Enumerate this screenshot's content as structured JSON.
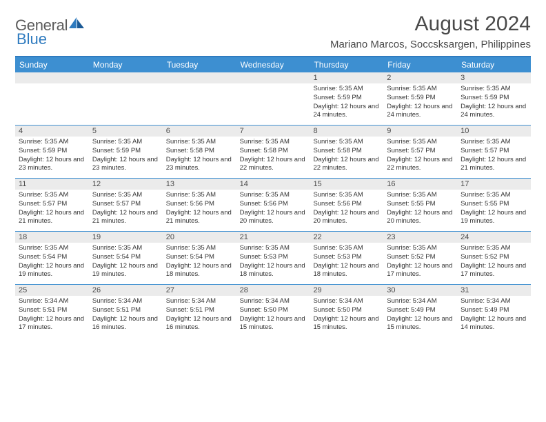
{
  "logo": {
    "text_part1": "General",
    "text_part2": "Blue",
    "icon_color": "#2f7bbf"
  },
  "header": {
    "month_title": "August 2024",
    "location": "Mariano Marcos, Soccsksargen, Philippines"
  },
  "colors": {
    "header_bar": "#3d8fd1",
    "header_border": "#2f7bbf",
    "daynum_bg": "#ebebeb",
    "text": "#333333",
    "title_text": "#4a4a4a"
  },
  "weekdays": [
    "Sunday",
    "Monday",
    "Tuesday",
    "Wednesday",
    "Thursday",
    "Friday",
    "Saturday"
  ],
  "weeks": [
    [
      null,
      null,
      null,
      null,
      {
        "n": "1",
        "sr": "Sunrise: 5:35 AM",
        "ss": "Sunset: 5:59 PM",
        "dl": "Daylight: 12 hours and 24 minutes."
      },
      {
        "n": "2",
        "sr": "Sunrise: 5:35 AM",
        "ss": "Sunset: 5:59 PM",
        "dl": "Daylight: 12 hours and 24 minutes."
      },
      {
        "n": "3",
        "sr": "Sunrise: 5:35 AM",
        "ss": "Sunset: 5:59 PM",
        "dl": "Daylight: 12 hours and 24 minutes."
      }
    ],
    [
      {
        "n": "4",
        "sr": "Sunrise: 5:35 AM",
        "ss": "Sunset: 5:59 PM",
        "dl": "Daylight: 12 hours and 23 minutes."
      },
      {
        "n": "5",
        "sr": "Sunrise: 5:35 AM",
        "ss": "Sunset: 5:59 PM",
        "dl": "Daylight: 12 hours and 23 minutes."
      },
      {
        "n": "6",
        "sr": "Sunrise: 5:35 AM",
        "ss": "Sunset: 5:58 PM",
        "dl": "Daylight: 12 hours and 23 minutes."
      },
      {
        "n": "7",
        "sr": "Sunrise: 5:35 AM",
        "ss": "Sunset: 5:58 PM",
        "dl": "Daylight: 12 hours and 22 minutes."
      },
      {
        "n": "8",
        "sr": "Sunrise: 5:35 AM",
        "ss": "Sunset: 5:58 PM",
        "dl": "Daylight: 12 hours and 22 minutes."
      },
      {
        "n": "9",
        "sr": "Sunrise: 5:35 AM",
        "ss": "Sunset: 5:57 PM",
        "dl": "Daylight: 12 hours and 22 minutes."
      },
      {
        "n": "10",
        "sr": "Sunrise: 5:35 AM",
        "ss": "Sunset: 5:57 PM",
        "dl": "Daylight: 12 hours and 21 minutes."
      }
    ],
    [
      {
        "n": "11",
        "sr": "Sunrise: 5:35 AM",
        "ss": "Sunset: 5:57 PM",
        "dl": "Daylight: 12 hours and 21 minutes."
      },
      {
        "n": "12",
        "sr": "Sunrise: 5:35 AM",
        "ss": "Sunset: 5:57 PM",
        "dl": "Daylight: 12 hours and 21 minutes."
      },
      {
        "n": "13",
        "sr": "Sunrise: 5:35 AM",
        "ss": "Sunset: 5:56 PM",
        "dl": "Daylight: 12 hours and 21 minutes."
      },
      {
        "n": "14",
        "sr": "Sunrise: 5:35 AM",
        "ss": "Sunset: 5:56 PM",
        "dl": "Daylight: 12 hours and 20 minutes."
      },
      {
        "n": "15",
        "sr": "Sunrise: 5:35 AM",
        "ss": "Sunset: 5:56 PM",
        "dl": "Daylight: 12 hours and 20 minutes."
      },
      {
        "n": "16",
        "sr": "Sunrise: 5:35 AM",
        "ss": "Sunset: 5:55 PM",
        "dl": "Daylight: 12 hours and 20 minutes."
      },
      {
        "n": "17",
        "sr": "Sunrise: 5:35 AM",
        "ss": "Sunset: 5:55 PM",
        "dl": "Daylight: 12 hours and 19 minutes."
      }
    ],
    [
      {
        "n": "18",
        "sr": "Sunrise: 5:35 AM",
        "ss": "Sunset: 5:54 PM",
        "dl": "Daylight: 12 hours and 19 minutes."
      },
      {
        "n": "19",
        "sr": "Sunrise: 5:35 AM",
        "ss": "Sunset: 5:54 PM",
        "dl": "Daylight: 12 hours and 19 minutes."
      },
      {
        "n": "20",
        "sr": "Sunrise: 5:35 AM",
        "ss": "Sunset: 5:54 PM",
        "dl": "Daylight: 12 hours and 18 minutes."
      },
      {
        "n": "21",
        "sr": "Sunrise: 5:35 AM",
        "ss": "Sunset: 5:53 PM",
        "dl": "Daylight: 12 hours and 18 minutes."
      },
      {
        "n": "22",
        "sr": "Sunrise: 5:35 AM",
        "ss": "Sunset: 5:53 PM",
        "dl": "Daylight: 12 hours and 18 minutes."
      },
      {
        "n": "23",
        "sr": "Sunrise: 5:35 AM",
        "ss": "Sunset: 5:52 PM",
        "dl": "Daylight: 12 hours and 17 minutes."
      },
      {
        "n": "24",
        "sr": "Sunrise: 5:35 AM",
        "ss": "Sunset: 5:52 PM",
        "dl": "Daylight: 12 hours and 17 minutes."
      }
    ],
    [
      {
        "n": "25",
        "sr": "Sunrise: 5:34 AM",
        "ss": "Sunset: 5:51 PM",
        "dl": "Daylight: 12 hours and 17 minutes."
      },
      {
        "n": "26",
        "sr": "Sunrise: 5:34 AM",
        "ss": "Sunset: 5:51 PM",
        "dl": "Daylight: 12 hours and 16 minutes."
      },
      {
        "n": "27",
        "sr": "Sunrise: 5:34 AM",
        "ss": "Sunset: 5:51 PM",
        "dl": "Daylight: 12 hours and 16 minutes."
      },
      {
        "n": "28",
        "sr": "Sunrise: 5:34 AM",
        "ss": "Sunset: 5:50 PM",
        "dl": "Daylight: 12 hours and 15 minutes."
      },
      {
        "n": "29",
        "sr": "Sunrise: 5:34 AM",
        "ss": "Sunset: 5:50 PM",
        "dl": "Daylight: 12 hours and 15 minutes."
      },
      {
        "n": "30",
        "sr": "Sunrise: 5:34 AM",
        "ss": "Sunset: 5:49 PM",
        "dl": "Daylight: 12 hours and 15 minutes."
      },
      {
        "n": "31",
        "sr": "Sunrise: 5:34 AM",
        "ss": "Sunset: 5:49 PM",
        "dl": "Daylight: 12 hours and 14 minutes."
      }
    ]
  ]
}
